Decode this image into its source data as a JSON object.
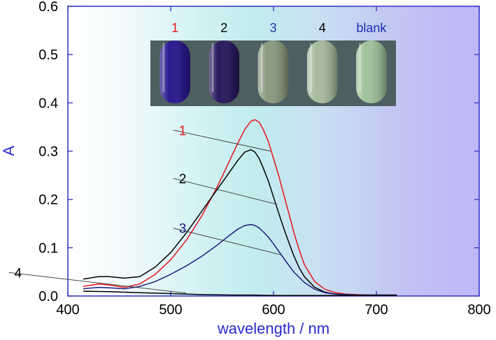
{
  "chart_data": {
    "type": "line",
    "title": "",
    "xlabel": "wavelength / nm",
    "ylabel": "A",
    "xlim": [
      400,
      800
    ],
    "ylim": [
      0.0,
      0.6
    ],
    "x_ticks": [
      "400",
      "500",
      "600",
      "700",
      "800"
    ],
    "y_ticks": [
      "0.0",
      "0.1",
      "0.2",
      "0.3",
      "0.4",
      "0.5",
      "0.6"
    ],
    "grid": false,
    "series": [
      {
        "name": "1",
        "color": "#e8141c",
        "x": [
          415,
          430,
          440,
          455,
          470,
          485,
          500,
          515,
          530,
          545,
          555,
          565,
          572,
          578,
          582,
          586,
          590,
          595,
          600,
          605,
          610,
          615,
          620,
          625,
          630,
          640,
          650,
          660,
          670,
          680,
          690,
          700,
          720
        ],
        "y": [
          0.02,
          0.025,
          0.023,
          0.018,
          0.025,
          0.045,
          0.075,
          0.115,
          0.165,
          0.225,
          0.27,
          0.315,
          0.345,
          0.362,
          0.365,
          0.36,
          0.345,
          0.32,
          0.285,
          0.25,
          0.21,
          0.17,
          0.13,
          0.095,
          0.065,
          0.03,
          0.014,
          0.007,
          0.004,
          0.003,
          0.002,
          0.002,
          0.002
        ]
      },
      {
        "name": "2",
        "color": "#000000",
        "x": [
          415,
          430,
          440,
          455,
          470,
          485,
          500,
          515,
          530,
          545,
          555,
          565,
          572,
          578,
          582,
          586,
          590,
          595,
          600,
          605,
          610,
          615,
          620,
          625,
          630,
          640,
          650,
          660,
          670,
          680,
          690,
          700,
          720
        ],
        "y": [
          0.035,
          0.04,
          0.04,
          0.037,
          0.04,
          0.06,
          0.09,
          0.13,
          0.175,
          0.22,
          0.25,
          0.28,
          0.298,
          0.303,
          0.298,
          0.285,
          0.265,
          0.238,
          0.205,
          0.172,
          0.14,
          0.11,
          0.082,
          0.058,
          0.04,
          0.018,
          0.008,
          0.004,
          0.003,
          0.002,
          0.002,
          0.002,
          0.002
        ]
      },
      {
        "name": "3",
        "color": "#1c1c7a",
        "x": [
          415,
          430,
          440,
          455,
          470,
          485,
          500,
          515,
          530,
          545,
          555,
          565,
          572,
          578,
          582,
          586,
          590,
          595,
          600,
          605,
          610,
          615,
          620,
          630,
          640,
          650,
          660,
          670,
          680,
          700,
          720
        ],
        "y": [
          0.015,
          0.018,
          0.017,
          0.015,
          0.02,
          0.03,
          0.045,
          0.062,
          0.082,
          0.105,
          0.122,
          0.138,
          0.146,
          0.148,
          0.146,
          0.141,
          0.133,
          0.122,
          0.108,
          0.093,
          0.078,
          0.063,
          0.049,
          0.028,
          0.014,
          0.007,
          0.004,
          0.003,
          0.002,
          0.002,
          0.002
        ]
      },
      {
        "name": "4",
        "color": "#000000",
        "x": [
          415,
          440,
          470,
          500,
          530,
          560,
          580,
          600,
          630,
          660,
          690,
          720
        ],
        "y": [
          0.01,
          0.009,
          0.007,
          0.005,
          0.003,
          0.002,
          0.002,
          0.001,
          0.001,
          0.001,
          0.001,
          0.001
        ]
      }
    ],
    "annotations": [
      {
        "label": "1",
        "color": "#e8141c",
        "at_x": 597,
        "at_y": 0.3,
        "text_x": 508,
        "text_y": 0.335
      },
      {
        "label": "2",
        "color": "#000000",
        "at_x": 603,
        "at_y": 0.19,
        "text_x": 508,
        "text_y": 0.235
      },
      {
        "label": "3",
        "color": "#1c1c7a",
        "at_x": 608,
        "at_y": 0.085,
        "text_x": 508,
        "text_y": 0.132
      },
      {
        "label": "4",
        "color": "#000000",
        "at_x": 515,
        "at_y": 0.006,
        "text_x": 348,
        "text_y": 0.04
      }
    ],
    "inset_photo": {
      "tubes": [
        {
          "label": "1",
          "label_color": "#e8141c",
          "liquid": "#2a1a8f"
        },
        {
          "label": "2",
          "label_color": "#000000",
          "liquid": "#2a1a5e"
        },
        {
          "label": "3",
          "label_color": "#1a2fb0",
          "liquid": "#8a9a80"
        },
        {
          "label": "4",
          "label_color": "#000000",
          "liquid": "#a8bba0"
        },
        {
          "label": "blank",
          "label_color": "#1a2fb0",
          "liquid": "#9fc29a"
        }
      ]
    }
  },
  "colors": {
    "axis": "#3a3ac8",
    "axis_title": "#2a2ad0"
  }
}
